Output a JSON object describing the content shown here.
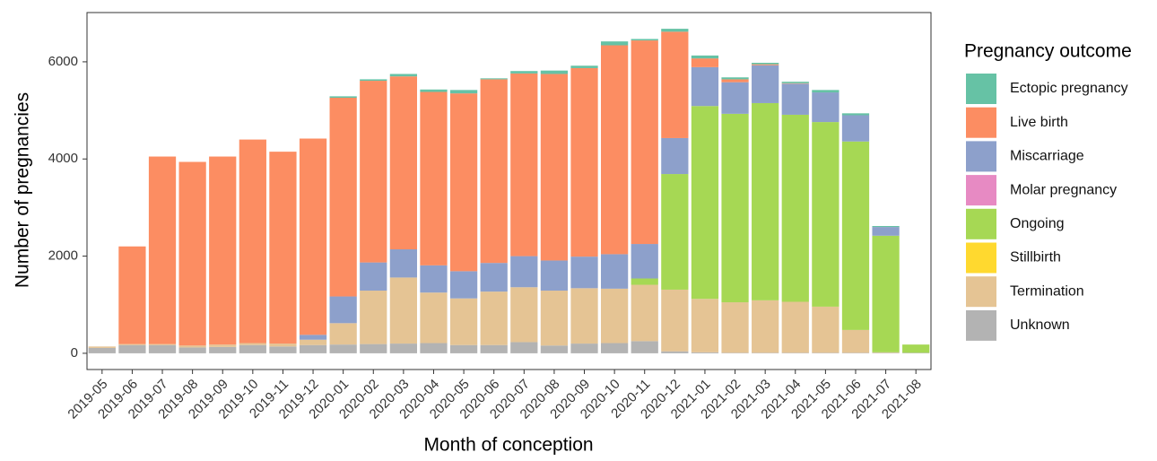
{
  "chart_data": {
    "type": "stacked-bar",
    "x_label": "Month of conception",
    "y_label": "Number of pregnancies",
    "legend_title": "Pregnancy outcome",
    "legend_position": "right",
    "grid": false,
    "categories": [
      "2019-05",
      "2019-06",
      "2019-07",
      "2019-08",
      "2019-09",
      "2019-10",
      "2019-11",
      "2019-12",
      "2020-01",
      "2020-02",
      "2020-03",
      "2020-04",
      "2020-05",
      "2020-06",
      "2020-07",
      "2020-08",
      "2020-09",
      "2020-10",
      "2020-11",
      "2020-12",
      "2021-01",
      "2021-02",
      "2021-03",
      "2021-04",
      "2021-05",
      "2021-06",
      "2021-07",
      "2021-08"
    ],
    "ylim": [
      -334,
      7014
    ],
    "yticks": [
      0,
      2000,
      4000,
      6000
    ],
    "series": [
      {
        "name": "Ectopic pregnancy",
        "color": "#66c2a5",
        "values": [
          0,
          0,
          0,
          0,
          0,
          0,
          0,
          0,
          30,
          30,
          50,
          50,
          70,
          20,
          50,
          70,
          50,
          80,
          30,
          60,
          60,
          40,
          30,
          30,
          50,
          40,
          20,
          0
        ]
      },
      {
        "name": "Live birth",
        "color": "#fc8d62",
        "values": [
          0,
          2010,
          3860,
          3780,
          3870,
          4190,
          3950,
          4040,
          4090,
          3740,
          3560,
          3570,
          3660,
          3780,
          3760,
          3840,
          3880,
          4300,
          4190,
          2190,
          180,
          60,
          20,
          10,
          0,
          0,
          0,
          0
        ]
      },
      {
        "name": "Miscarriage",
        "color": "#8da0cb",
        "values": [
          0,
          0,
          0,
          0,
          0,
          0,
          0,
          100,
          550,
          580,
          580,
          560,
          560,
          590,
          640,
          620,
          650,
          710,
          710,
          740,
          800,
          650,
          780,
          640,
          610,
          540,
          180,
          0
        ]
      },
      {
        "name": "Molar pregnancy",
        "color": "#e78ac3",
        "values": [
          0,
          0,
          0,
          0,
          0,
          0,
          0,
          0,
          0,
          0,
          0,
          0,
          0,
          0,
          0,
          0,
          0,
          0,
          0,
          0,
          0,
          0,
          0,
          0,
          0,
          0,
          0,
          0
        ]
      },
      {
        "name": "Ongoing",
        "color": "#a6d854",
        "values": [
          0,
          0,
          0,
          0,
          0,
          0,
          0,
          0,
          0,
          0,
          0,
          0,
          0,
          0,
          0,
          0,
          0,
          0,
          130,
          2380,
          3970,
          3880,
          4060,
          3850,
          3800,
          3880,
          2400,
          170
        ]
      },
      {
        "name": "Stillbirth",
        "color": "#ffd92f",
        "values": [
          0,
          0,
          0,
          0,
          0,
          0,
          0,
          0,
          0,
          0,
          0,
          0,
          0,
          0,
          0,
          0,
          0,
          0,
          0,
          0,
          0,
          0,
          0,
          0,
          0,
          0,
          0,
          0
        ]
      },
      {
        "name": "Termination",
        "color": "#e5c494",
        "values": [
          30,
          20,
          20,
          40,
          50,
          40,
          60,
          110,
          440,
          1100,
          1360,
          1040,
          960,
          1100,
          1130,
          1130,
          1140,
          1120,
          1160,
          1270,
          1100,
          1040,
          1080,
          1050,
          950,
          470,
          10,
          0
        ]
      },
      {
        "name": "Unknown",
        "color": "#b3b3b3",
        "values": [
          110,
          170,
          170,
          120,
          130,
          170,
          140,
          170,
          180,
          190,
          200,
          210,
          170,
          170,
          230,
          160,
          200,
          210,
          250,
          40,
          20,
          10,
          10,
          10,
          10,
          10,
          10,
          10
        ]
      }
    ]
  }
}
